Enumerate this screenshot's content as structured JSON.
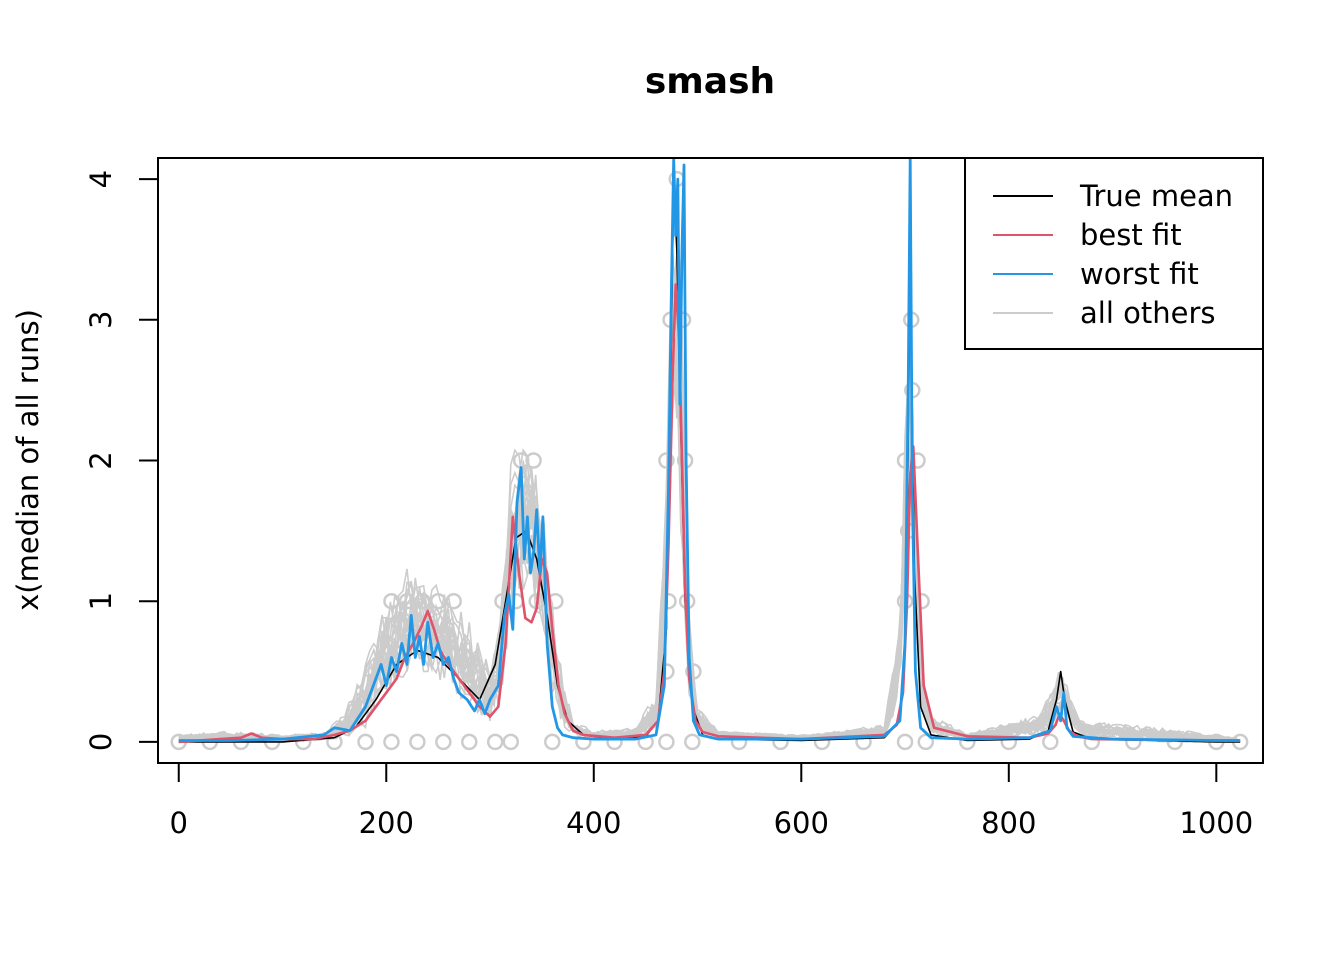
{
  "chart_data": {
    "type": "line",
    "title": "smash",
    "xlabel": "",
    "ylabel": "x(median of all runs)",
    "xlim": [
      -20,
      1045
    ],
    "ylim": [
      -0.15,
      4.15
    ],
    "x_ticks": [
      0,
      200,
      400,
      600,
      800,
      1000
    ],
    "x_tick_labels": [
      "0",
      "200",
      "400",
      "600",
      "800",
      "1000"
    ],
    "y_ticks": [
      0,
      1,
      2,
      3,
      4
    ],
    "y_tick_labels": [
      "0",
      "1",
      "2",
      "3",
      "4"
    ],
    "grid": false,
    "legend_position": "top-right",
    "legend": [
      {
        "label": "True mean",
        "color": "#000000"
      },
      {
        "label": "best fit",
        "color": "#DF536B"
      },
      {
        "label": "worst fit",
        "color": "#2297E6"
      },
      {
        "label": "all others",
        "color": "#CCCCCC"
      }
    ],
    "colors": {
      "true_mean": "#000000",
      "best_fit": "#DF536B",
      "worst_fit": "#2297E6",
      "all_others": "#CCCCCC"
    },
    "series": [
      {
        "name": "True mean",
        "key": "true_mean",
        "x": [
          0,
          100,
          150,
          170,
          190,
          210,
          230,
          250,
          270,
          290,
          305,
          315,
          325,
          335,
          345,
          355,
          365,
          375,
          390,
          420,
          450,
          462,
          470,
          474,
          477,
          480,
          484,
          488,
          495,
          505,
          520,
          600,
          680,
          695,
          701,
          705,
          709,
          715,
          725,
          760,
          820,
          838,
          846,
          850,
          854,
          862,
          880,
          1000,
          1023
        ],
        "y": [
          0.0,
          0.0,
          0.03,
          0.1,
          0.3,
          0.55,
          0.65,
          0.6,
          0.45,
          0.3,
          0.55,
          1.0,
          1.45,
          1.5,
          1.3,
          0.9,
          0.4,
          0.15,
          0.05,
          0.02,
          0.04,
          0.15,
          0.8,
          2.5,
          4.0,
          3.5,
          2.2,
          1.0,
          0.25,
          0.05,
          0.02,
          0.01,
          0.03,
          0.15,
          0.8,
          3.5,
          1.2,
          0.25,
          0.05,
          0.01,
          0.02,
          0.08,
          0.3,
          0.5,
          0.3,
          0.07,
          0.02,
          0.0,
          0.0
        ]
      },
      {
        "name": "best fit",
        "key": "best_fit",
        "x": [
          0,
          40,
          60,
          70,
          80,
          100,
          130,
          150,
          165,
          180,
          190,
          200,
          210,
          218,
          226,
          234,
          240,
          246,
          252,
          260,
          270,
          280,
          290,
          300,
          308,
          315,
          322,
          328,
          334,
          340,
          345,
          350,
          355,
          360,
          366,
          372,
          380,
          390,
          420,
          450,
          462,
          468,
          472,
          476,
          479,
          482,
          485,
          488,
          492,
          498,
          505,
          520,
          600,
          680,
          692,
          698,
          702,
          705,
          708,
          712,
          718,
          728,
          760,
          820,
          838,
          845,
          849,
          853,
          858,
          866,
          880,
          1000,
          1023
        ],
        "y": [
          0.0,
          0.02,
          0.03,
          0.06,
          0.03,
          0.02,
          0.02,
          0.05,
          0.08,
          0.15,
          0.25,
          0.35,
          0.45,
          0.6,
          0.7,
          0.82,
          0.93,
          0.8,
          0.65,
          0.55,
          0.45,
          0.35,
          0.25,
          0.18,
          0.25,
          0.7,
          1.6,
          1.2,
          0.88,
          0.85,
          0.95,
          1.3,
          1.2,
          0.8,
          0.4,
          0.2,
          0.08,
          0.05,
          0.03,
          0.05,
          0.15,
          0.5,
          1.4,
          2.6,
          3.25,
          2.9,
          2.0,
          1.1,
          0.45,
          0.15,
          0.07,
          0.04,
          0.02,
          0.05,
          0.12,
          0.35,
          1.0,
          1.9,
          2.1,
          1.4,
          0.4,
          0.1,
          0.04,
          0.03,
          0.06,
          0.12,
          0.2,
          0.15,
          0.08,
          0.04,
          0.02,
          0.01,
          0.01
        ]
      },
      {
        "name": "worst fit",
        "key": "worst_fit",
        "x": [
          0,
          50,
          100,
          140,
          150,
          165,
          180,
          190,
          195,
          200,
          205,
          210,
          215,
          220,
          224,
          228,
          232,
          236,
          240,
          245,
          250,
          255,
          260,
          265,
          270,
          278,
          285,
          290,
          295,
          300,
          308,
          314,
          318,
          322,
          326,
          330,
          333,
          336,
          339,
          342,
          345,
          348,
          351,
          355,
          360,
          365,
          370,
          380,
          400,
          440,
          460,
          468,
          472,
          475,
          477,
          479,
          481,
          483,
          485,
          487,
          489,
          492,
          496,
          502,
          520,
          600,
          680,
          695,
          700,
          703,
          705,
          707,
          710,
          715,
          725,
          760,
          820,
          840,
          846,
          850,
          853,
          856,
          862,
          880,
          900,
          1000,
          1023
        ],
        "y": [
          0.01,
          0.01,
          0.02,
          0.05,
          0.1,
          0.08,
          0.25,
          0.45,
          0.55,
          0.4,
          0.6,
          0.5,
          0.7,
          0.55,
          0.9,
          0.6,
          0.75,
          0.55,
          0.85,
          0.6,
          0.7,
          0.55,
          0.6,
          0.45,
          0.35,
          0.3,
          0.22,
          0.3,
          0.2,
          0.3,
          0.4,
          0.9,
          1.05,
          0.8,
          1.7,
          1.95,
          1.3,
          1.6,
          1.2,
          1.35,
          1.65,
          1.2,
          1.6,
          0.7,
          0.25,
          0.1,
          0.05,
          0.03,
          0.02,
          0.02,
          0.05,
          0.4,
          1.8,
          3.3,
          4.15,
          3.6,
          4.0,
          2.4,
          3.5,
          4.1,
          2.0,
          0.6,
          0.15,
          0.05,
          0.02,
          0.02,
          0.04,
          0.15,
          0.7,
          2.5,
          4.15,
          1.8,
          0.5,
          0.1,
          0.03,
          0.02,
          0.03,
          0.08,
          0.25,
          0.15,
          0.35,
          0.1,
          0.04,
          0.03,
          0.02,
          0.01,
          0.01
        ]
      }
    ],
    "others": {
      "name": "all others",
      "key": "all_others",
      "run_count": 22,
      "envelope_x": [
        0,
        40,
        100,
        140,
        160,
        180,
        200,
        220,
        240,
        260,
        280,
        300,
        310,
        320,
        330,
        340,
        350,
        360,
        370,
        380,
        400,
        440,
        460,
        470,
        476,
        480,
        485,
        490,
        500,
        520,
        600,
        680,
        695,
        702,
        705,
        708,
        715,
        725,
        760,
        830,
        842,
        850,
        856,
        870,
        950,
        1000,
        1023
      ],
      "envelope_lo": [
        0.0,
        0.0,
        0.0,
        0.01,
        0.03,
        0.1,
        0.3,
        0.5,
        0.5,
        0.4,
        0.25,
        0.15,
        0.3,
        0.8,
        1.1,
        1.0,
        0.8,
        0.35,
        0.12,
        0.05,
        0.02,
        0.02,
        0.08,
        0.6,
        2.2,
        2.0,
        1.2,
        0.4,
        0.08,
        0.03,
        0.01,
        0.03,
        0.3,
        1.4,
        2.0,
        1.2,
        0.2,
        0.05,
        0.01,
        0.05,
        0.12,
        0.25,
        0.15,
        0.04,
        0.0,
        0.0,
        0.0
      ],
      "envelope_hi": [
        0.05,
        0.08,
        0.05,
        0.08,
        0.2,
        0.6,
        1.05,
        1.25,
        1.2,
        1.1,
        0.85,
        0.6,
        1.0,
        2.2,
        2.25,
        2.25,
        1.8,
        1.0,
        0.45,
        0.15,
        0.08,
        0.1,
        0.35,
        2.0,
        4.1,
        4.1,
        3.2,
        1.2,
        0.25,
        0.08,
        0.05,
        0.12,
        0.9,
        3.0,
        3.0,
        2.1,
        0.6,
        0.2,
        0.06,
        0.2,
        0.4,
        0.55,
        0.4,
        0.15,
        0.1,
        0.05,
        0.03
      ],
      "points": [
        [
          0,
          0
        ],
        [
          30,
          0
        ],
        [
          60,
          0
        ],
        [
          90,
          0
        ],
        [
          120,
          0
        ],
        [
          150,
          0
        ],
        [
          180,
          0
        ],
        [
          205,
          0
        ],
        [
          230,
          0
        ],
        [
          255,
          0
        ],
        [
          280,
          0
        ],
        [
          305,
          0
        ],
        [
          320,
          0
        ],
        [
          360,
          0
        ],
        [
          390,
          0
        ],
        [
          420,
          0
        ],
        [
          450,
          0
        ],
        [
          470,
          0
        ],
        [
          495,
          0
        ],
        [
          540,
          0
        ],
        [
          580,
          0
        ],
        [
          620,
          0
        ],
        [
          660,
          0
        ],
        [
          700,
          0
        ],
        [
          720,
          0
        ],
        [
          760,
          0
        ],
        [
          800,
          0
        ],
        [
          840,
          0
        ],
        [
          880,
          0
        ],
        [
          920,
          0
        ],
        [
          960,
          0
        ],
        [
          1000,
          0
        ],
        [
          1023,
          0
        ],
        [
          205,
          1
        ],
        [
          220,
          1
        ],
        [
          235,
          1
        ],
        [
          250,
          1
        ],
        [
          265,
          1
        ],
        [
          312,
          1
        ],
        [
          325,
          1
        ],
        [
          345,
          1
        ],
        [
          363,
          1
        ],
        [
          330,
          2
        ],
        [
          342,
          2
        ],
        [
          470,
          0.5
        ],
        [
          472,
          1
        ],
        [
          490,
          1
        ],
        [
          470,
          2
        ],
        [
          488,
          2
        ],
        [
          474,
          3
        ],
        [
          486,
          3
        ],
        [
          480,
          4
        ],
        [
          700,
          1
        ],
        [
          716,
          1
        ],
        [
          700,
          2
        ],
        [
          712,
          2
        ],
        [
          703,
          1.5
        ],
        [
          706,
          3
        ],
        [
          707,
          2.5
        ],
        [
          496,
          0.5
        ]
      ]
    }
  }
}
